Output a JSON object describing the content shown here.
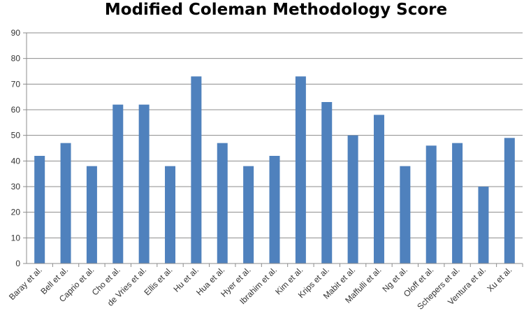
{
  "chart_data": {
    "type": "bar",
    "title": "Modified Coleman Methodology Score",
    "categories": [
      "Baray et al.",
      "Bell et al.",
      "Caprio et al.",
      "Cho et al.",
      "de Vries et al.",
      "Ellis et al.",
      "Hu et al.",
      "Hua et al.",
      "Hyer et al.",
      "Ibrahim et al.",
      "Kim et al.",
      "Krips et al.",
      "Mabit et al.",
      "Maffulli et al.",
      "Ng et al.",
      "Oloff et al.",
      "Schepers et al.",
      "Ventura et al.",
      "Xu et al."
    ],
    "values": [
      42,
      47,
      38,
      62,
      62,
      38,
      73,
      47,
      38,
      42,
      73,
      63,
      50,
      58,
      38,
      46,
      47,
      30,
      49
    ],
    "xlabel": "",
    "ylabel": "",
    "ylim": [
      0,
      90
    ],
    "yticks": [
      0,
      10,
      20,
      30,
      40,
      50,
      60,
      70,
      80,
      90
    ],
    "grid": true,
    "legend": "none",
    "bar_color": "#4F81BD",
    "grid_color": "#8c8c8c"
  }
}
